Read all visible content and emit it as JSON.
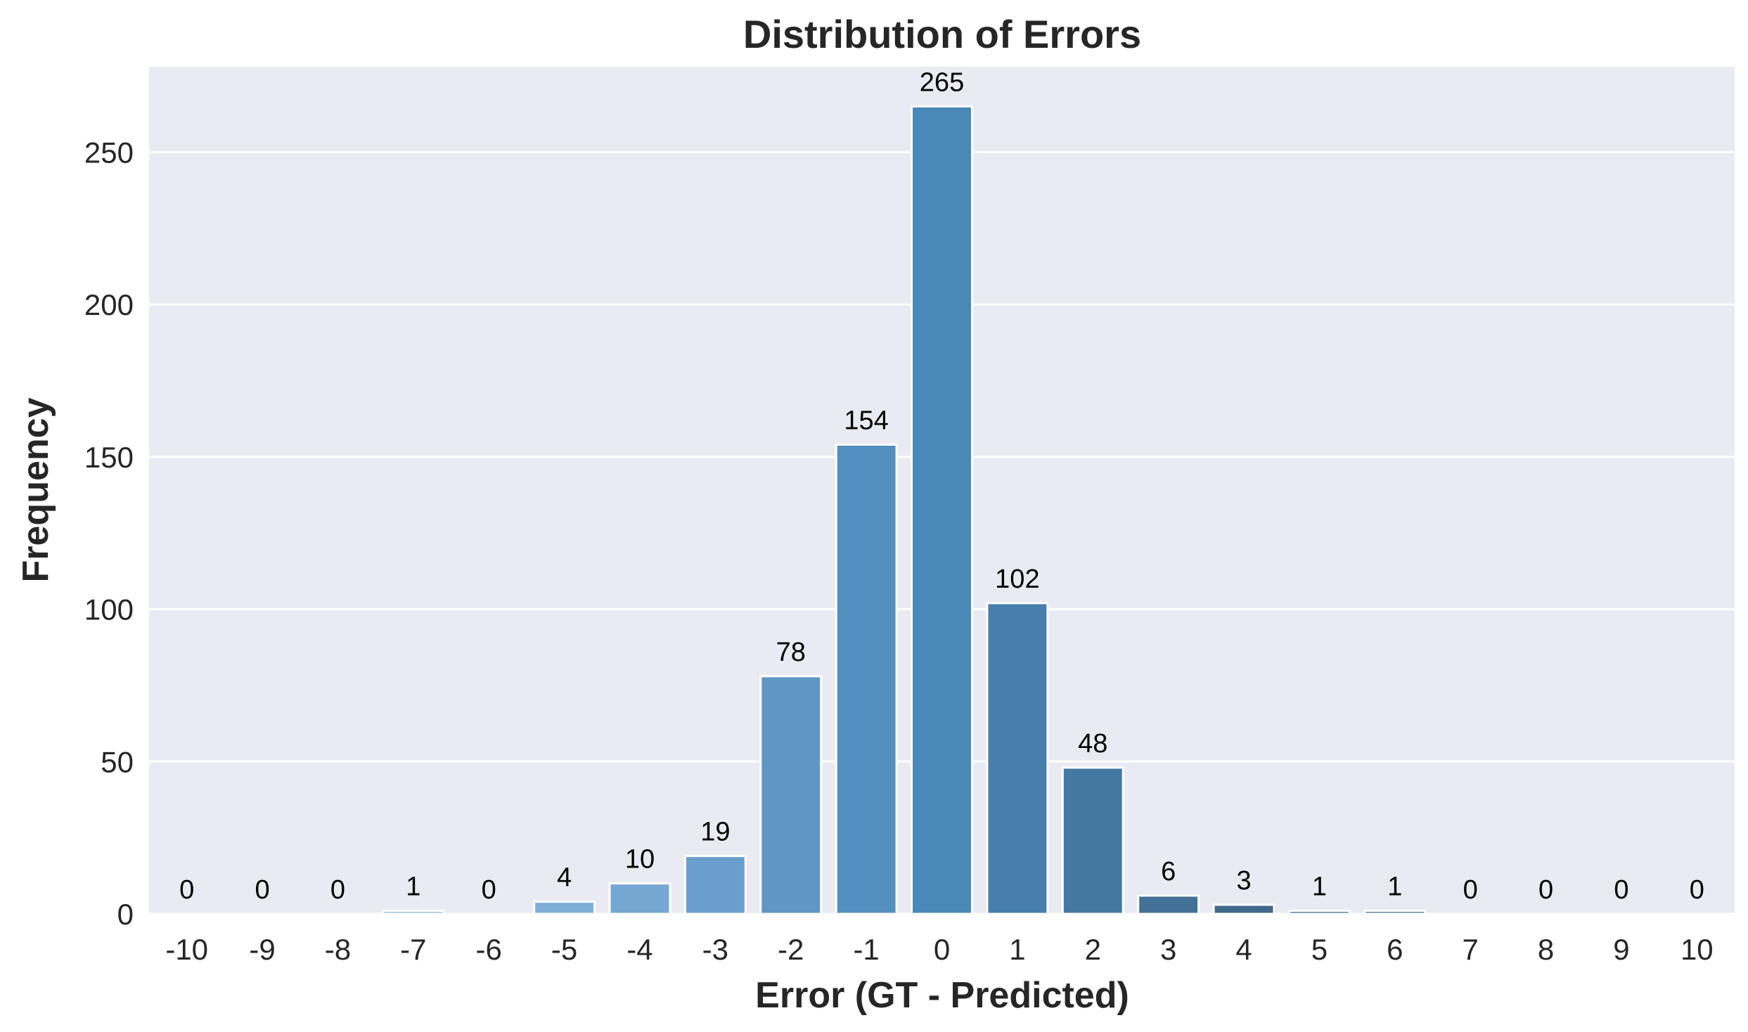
{
  "chart_data": {
    "type": "bar",
    "title": "Distribution of Errors",
    "xlabel": "Error (GT - Predicted)",
    "ylabel": "Frequency",
    "categories": [
      "-10",
      "-9",
      "-8",
      "-7",
      "-6",
      "-5",
      "-4",
      "-3",
      "-2",
      "-1",
      "0",
      "1",
      "2",
      "3",
      "4",
      "5",
      "6",
      "7",
      "8",
      "9",
      "10"
    ],
    "values": [
      0,
      0,
      0,
      1,
      0,
      4,
      10,
      19,
      78,
      154,
      265,
      102,
      48,
      6,
      3,
      1,
      1,
      0,
      0,
      0,
      0
    ],
    "data_labels": [
      "0",
      "0",
      "0",
      "1",
      "0",
      "4",
      "10",
      "19",
      "78",
      "154",
      "265",
      "102",
      "48",
      "6",
      "3",
      "1",
      "1",
      "0",
      "0",
      "0",
      "0"
    ],
    "ylim": [
      0,
      278
    ],
    "yticks": [
      0,
      50,
      100,
      150,
      200,
      250
    ],
    "ytick_labels": [
      "0",
      "50",
      "100",
      "150",
      "200",
      "250"
    ],
    "grid": true,
    "bar_colors": [
      "#a3c6e3",
      "#9dc2e2",
      "#96bee0",
      "#8fbadd",
      "#88b5db",
      "#7fafd7",
      "#75a7d2",
      "#6a9fcb",
      "#5f96c4",
      "#5390bf",
      "#4a88b7",
      "#477fac",
      "#4578a1",
      "#437096",
      "#41698c",
      "#4a7494",
      "#4d7898",
      "#507c9c",
      "#5380a0",
      "#5684a4",
      "#5988a8"
    ],
    "background_color": "#eaeaf2",
    "grid_color": "#ffffff"
  }
}
